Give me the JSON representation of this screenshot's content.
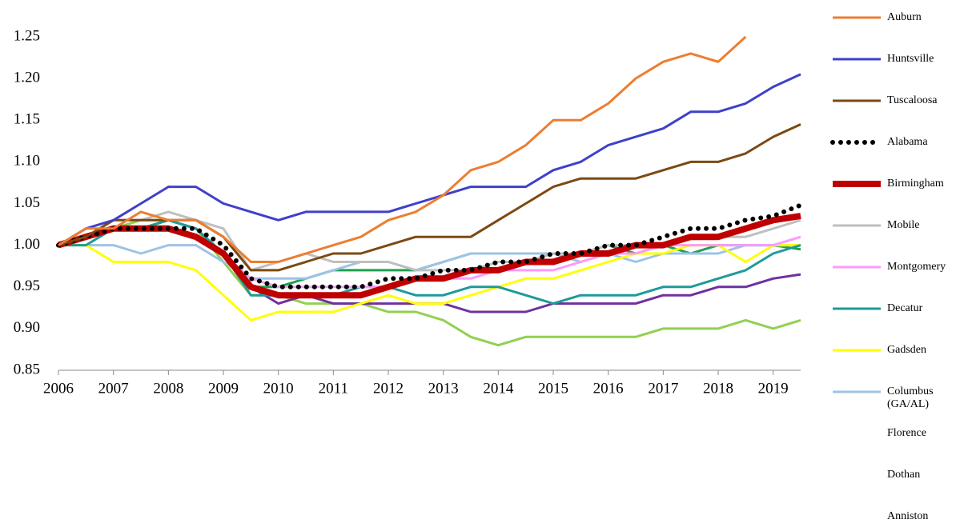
{
  "chart_data": {
    "type": "line",
    "x": [
      2006,
      2006.5,
      2007,
      2007.5,
      2008,
      2008.5,
      2009,
      2009.5,
      2010,
      2010.5,
      2011,
      2011.5,
      2012,
      2012.5,
      2013,
      2013.5,
      2014,
      2014.5,
      2015,
      2015.5,
      2016,
      2016.5,
      2017,
      2017.5,
      2018,
      2018.5,
      2019,
      2019.5
    ],
    "xlim": [
      2006,
      2019.5
    ],
    "xticks": [
      2006,
      2007,
      2008,
      2009,
      2010,
      2011,
      2012,
      2013,
      2014,
      2015,
      2016,
      2017,
      2018,
      2019
    ],
    "ylim": [
      0.85,
      1.25
    ],
    "yticks": [
      0.85,
      {
        "value": 0.9,
        "label": "0.90"
      },
      0.95,
      {
        "value": 1.0,
        "label": "1.00"
      },
      1.05,
      {
        "value": 1.1,
        "label": "1.10"
      },
      1.15,
      {
        "value": 1.2,
        "label": "1.20"
      },
      1.25
    ],
    "grid": false,
    "legend": "right",
    "series": [
      {
        "name": "Auburn",
        "color": "#ed7d31",
        "values": [
          1.0,
          1.02,
          1.02,
          1.04,
          1.03,
          1.03,
          1.01,
          0.98,
          0.98,
          0.99,
          1.0,
          1.01,
          1.03,
          1.04,
          1.06,
          1.09,
          1.1,
          1.12,
          1.15,
          1.15,
          1.17,
          1.2,
          1.22,
          1.23,
          1.22,
          1.25,
          null,
          null
        ]
      },
      {
        "name": "Huntsville",
        "color": "#4040c8",
        "values": [
          1.0,
          1.02,
          1.03,
          1.05,
          1.07,
          1.07,
          1.05,
          1.04,
          1.03,
          1.04,
          1.04,
          1.04,
          1.04,
          1.05,
          1.06,
          1.07,
          1.07,
          1.07,
          1.09,
          1.1,
          1.12,
          1.13,
          1.14,
          1.16,
          1.16,
          1.17,
          1.19,
          1.205
        ]
      },
      {
        "name": "Tuscaloosa",
        "color": "#7b4a12",
        "values": [
          1.0,
          1.01,
          1.03,
          1.03,
          1.03,
          1.03,
          1.01,
          0.97,
          0.97,
          0.98,
          0.99,
          0.99,
          1.0,
          1.01,
          1.01,
          1.01,
          1.03,
          1.05,
          1.07,
          1.08,
          1.08,
          1.08,
          1.09,
          1.1,
          1.1,
          1.11,
          1.13,
          1.145
        ]
      },
      {
        "name": "Alabama",
        "color": "#000000",
        "style": "dotted",
        "values": [
          1.0,
          1.01,
          1.02,
          1.02,
          1.02,
          1.02,
          1.0,
          0.96,
          0.95,
          0.95,
          0.95,
          0.95,
          0.96,
          0.96,
          0.97,
          0.97,
          0.98,
          0.98,
          0.99,
          0.99,
          1.0,
          1.0,
          1.01,
          1.02,
          1.02,
          1.03,
          1.035,
          1.048
        ]
      },
      {
        "name": "Birmingham",
        "color": "#c00000",
        "style": "thick",
        "values": [
          1.0,
          1.01,
          1.02,
          1.02,
          1.02,
          1.01,
          0.99,
          0.95,
          0.94,
          0.94,
          0.94,
          0.94,
          0.95,
          0.96,
          0.96,
          0.97,
          0.97,
          0.98,
          0.98,
          0.99,
          0.99,
          1.0,
          1.0,
          1.01,
          1.01,
          1.02,
          1.03,
          1.035
        ]
      },
      {
        "name": "Mobile",
        "color": "#bfbfbf",
        "values": [
          1.0,
          1.01,
          1.03,
          1.03,
          1.04,
          1.03,
          1.02,
          0.97,
          0.98,
          0.99,
          0.98,
          0.98,
          0.98,
          0.97,
          0.97,
          0.97,
          0.98,
          0.98,
          0.99,
          0.99,
          1.0,
          1.0,
          1.0,
          1.01,
          1.01,
          1.01,
          1.02,
          1.03
        ]
      },
      {
        "name": "Montgomery",
        "color": "#ff99ff",
        "values": [
          1.0,
          1.01,
          1.02,
          1.02,
          1.02,
          1.01,
          0.99,
          0.96,
          0.95,
          0.95,
          0.95,
          0.95,
          0.95,
          0.96,
          0.96,
          0.96,
          0.97,
          0.97,
          0.97,
          0.98,
          0.99,
          0.99,
          1.0,
          1.0,
          1.0,
          1.0,
          1.0,
          1.01
        ]
      },
      {
        "name": "Decatur",
        "color": "#1f9a9a",
        "values": [
          1.0,
          1.0,
          1.02,
          1.02,
          1.03,
          1.02,
          0.99,
          0.94,
          0.94,
          0.94,
          0.94,
          0.95,
          0.95,
          0.94,
          0.94,
          0.95,
          0.95,
          0.94,
          0.93,
          0.94,
          0.94,
          0.94,
          0.95,
          0.95,
          0.96,
          0.97,
          0.99,
          1.0
        ]
      },
      {
        "name": "Gadsden",
        "color": "#ffff00",
        "values": [
          1.0,
          1.0,
          0.98,
          0.98,
          0.98,
          0.97,
          0.94,
          0.91,
          0.92,
          0.92,
          0.92,
          0.93,
          0.94,
          0.93,
          0.93,
          0.94,
          0.95,
          0.96,
          0.96,
          0.97,
          0.98,
          0.99,
          0.99,
          1.0,
          1.0,
          0.98,
          1.0,
          1.0
        ]
      },
      {
        "name": "Columbus (GA/AL)",
        "color": "#9dc3e6",
        "values": [
          1.0,
          1.0,
          1.0,
          0.99,
          1.0,
          1.0,
          0.98,
          0.96,
          0.96,
          0.96,
          0.97,
          0.98,
          0.98,
          0.97,
          0.98,
          0.99,
          0.99,
          0.99,
          0.99,
          0.98,
          0.99,
          0.98,
          0.99,
          0.99,
          0.99,
          1.0,
          1.0,
          1.0
        ]
      },
      {
        "name": "Florence",
        "color": "#1fa050",
        "values": [
          1.0,
          1.01,
          1.02,
          1.02,
          1.03,
          1.02,
          0.99,
          0.95,
          0.95,
          0.96,
          0.97,
          0.97,
          0.97,
          0.97,
          0.98,
          0.99,
          0.99,
          0.99,
          0.99,
          0.99,
          1.0,
          0.99,
          1.0,
          0.99,
          1.0,
          1.0,
          1.0,
          0.995
        ]
      },
      {
        "name": "Dothan",
        "color": "#7030a0",
        "values": [
          1.0,
          1.01,
          1.02,
          1.02,
          1.02,
          1.01,
          0.99,
          0.95,
          0.93,
          0.94,
          0.93,
          0.93,
          0.93,
          0.93,
          0.93,
          0.92,
          0.92,
          0.92,
          0.93,
          0.93,
          0.93,
          0.93,
          0.94,
          0.94,
          0.95,
          0.95,
          0.96,
          0.965
        ]
      },
      {
        "name": "Anniston",
        "color": "#92d050",
        "values": [
          1.0,
          1.01,
          1.02,
          1.03,
          1.03,
          1.02,
          0.98,
          0.94,
          0.94,
          0.93,
          0.93,
          0.93,
          0.92,
          0.92,
          0.91,
          0.89,
          0.88,
          0.89,
          0.89,
          0.89,
          0.89,
          0.89,
          0.9,
          0.9,
          0.9,
          0.91,
          0.9,
          0.91
        ]
      }
    ]
  }
}
